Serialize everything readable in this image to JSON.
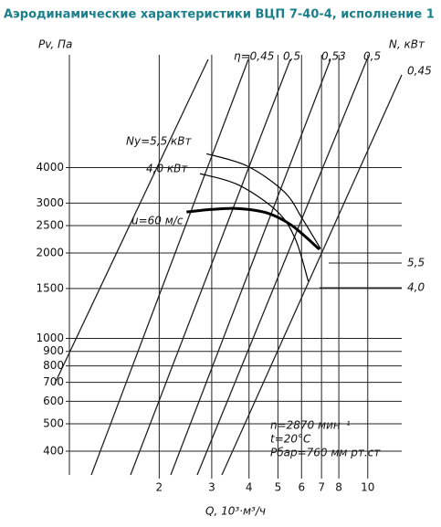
{
  "chart_data": {
    "type": "line",
    "title": "Аэродинамические характеристики ВЦП 7-40-4, исполнение 1",
    "y_label": "Pv, Па",
    "y2_label": "N, кВт",
    "x_label": "Q, 10³·м³/ч",
    "log_x": true,
    "log_y": true,
    "grid": true,
    "xlim": [
      1,
      13
    ],
    "xticks": [
      2,
      3,
      4,
      5,
      6,
      7,
      8,
      10
    ],
    "ylim": [
      330,
      10000
    ],
    "yticks": [
      400,
      500,
      600,
      700,
      800,
      900,
      1000,
      1500,
      2000,
      2500,
      3000,
      4000
    ],
    "series": [
      {
        "name": "u=60 м/с",
        "color": "#000000",
        "x": [
          2.47,
          3.0,
          3.68,
          4.59,
          5.57,
          6.89
        ],
        "values": [
          2790,
          2850,
          2870,
          2770,
          2500,
          2060
        ]
      },
      {
        "name": "Ny=5,5 кВт",
        "color": "#000000",
        "x": [
          2.88,
          3.95,
          5.26,
          6.05,
          6.95
        ],
        "values": [
          4480,
          4050,
          3280,
          2630,
          2070
        ]
      },
      {
        "name": "4,0 кВт",
        "color": "#000000",
        "x": [
          2.74,
          3.68,
          4.96,
          5.72,
          6.32
        ],
        "values": [
          3810,
          3480,
          2810,
          2240,
          1590
        ]
      }
    ],
    "power_labels": [
      "5,5",
      "4,0"
    ],
    "efficiency_labels": [
      "η=0,45",
      "0,5",
      "0,53",
      "0,5",
      "0,45"
    ],
    "annotations": [
      "n=2870 мин⁻¹",
      "t=20°C",
      "Рбар=760 мм рт.ст"
    ]
  }
}
